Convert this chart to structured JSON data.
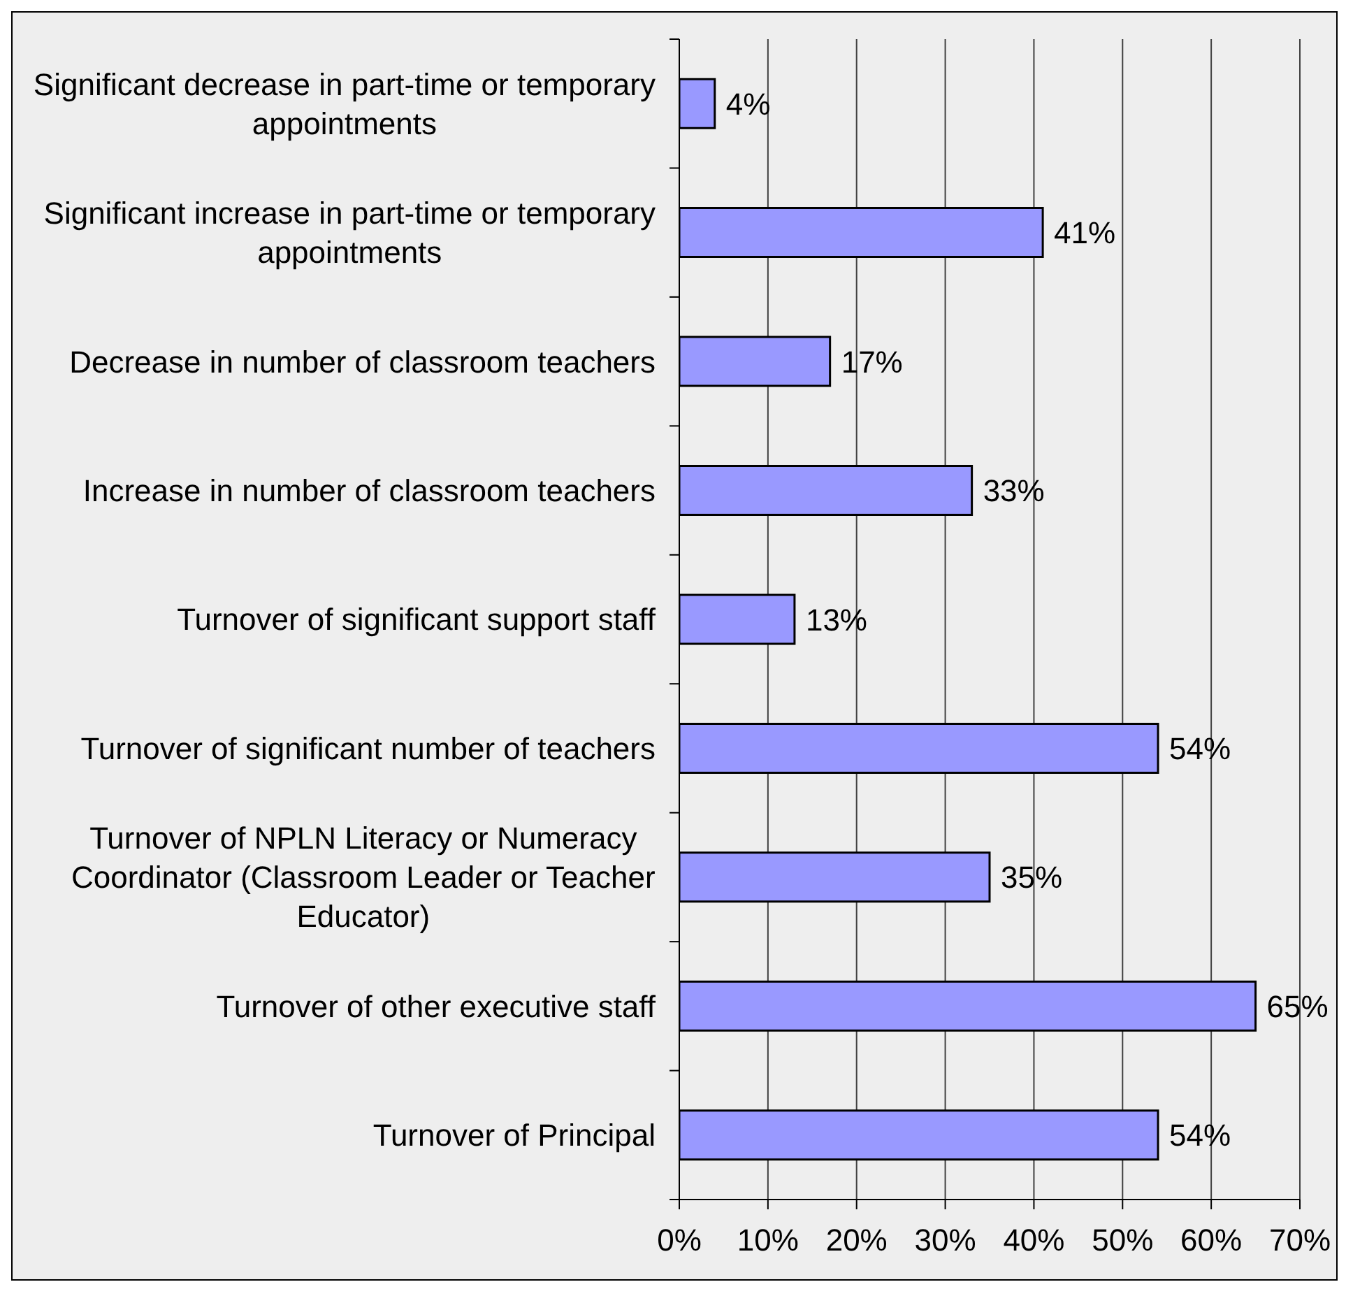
{
  "chart_data": {
    "type": "bar",
    "orientation": "horizontal",
    "categories": [
      "Significant decrease in part-time or temporary appointments",
      "Significant increase in part-time or temporary appointments",
      "Decrease in number of classroom teachers",
      "Increase in number of classroom teachers",
      "Turnover of significant support staff",
      "Turnover of significant number of teachers",
      "Turnover of NPLN Literacy or Numeracy Coordinator (Classroom Leader or Teacher Educator)",
      "Turnover of other executive staff",
      "Turnover of Principal"
    ],
    "values": [
      4,
      41,
      17,
      33,
      13,
      54,
      35,
      65,
      54
    ],
    "value_labels": [
      "4%",
      "41%",
      "17%",
      "33%",
      "13%",
      "54%",
      "35%",
      "65%",
      "54%"
    ],
    "color": "#9999ff",
    "xlim": [
      0,
      70
    ],
    "xticks": [
      {
        "value": 0,
        "label": "0%"
      },
      {
        "value": 10,
        "label": "10%"
      },
      {
        "value": 20,
        "label": "20%"
      },
      {
        "value": 30,
        "label": "30%"
      },
      {
        "value": 40,
        "label": "40%"
      },
      {
        "value": 50,
        "label": "50%"
      },
      {
        "value": 60,
        "label": "60%"
      },
      {
        "value": 70,
        "label": "70%"
      }
    ],
    "grid": "x"
  }
}
